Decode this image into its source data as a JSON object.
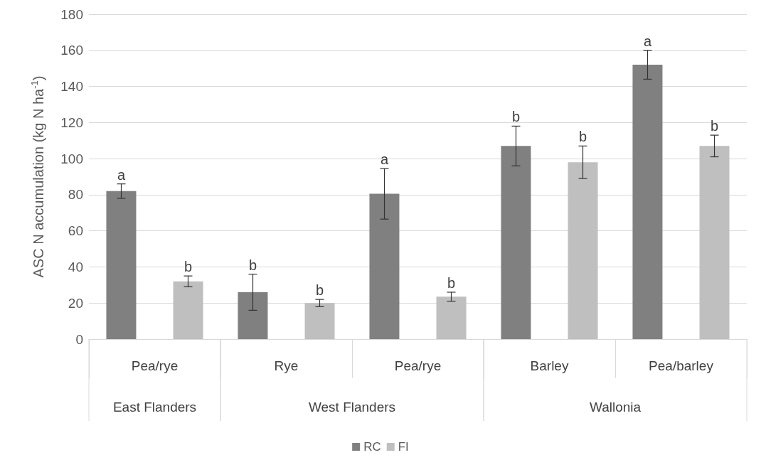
{
  "chart_data": {
    "type": "bar",
    "ylabel": "ASC N accumulation (kg N ha$^{-1}$)",
    "categories": [
      "Pea/rye",
      "Rye",
      "Pea/rye",
      "Barley",
      "Pea/barley"
    ],
    "series": [
      {
        "name": "RC",
        "color": "#808080",
        "values": [
          82,
          26,
          80.5,
          107,
          152
        ],
        "errors": [
          4,
          10,
          14,
          11,
          8
        ],
        "value_labels": [
          "a",
          "b",
          "a",
          "b",
          "a"
        ]
      },
      {
        "name": "FI",
        "color": "#bfbfbf",
        "values": [
          32,
          20,
          23.5,
          98,
          107
        ],
        "errors": [
          3,
          2,
          2.5,
          9,
          6
        ],
        "value_labels": [
          "b",
          "b",
          "b",
          "b",
          "b"
        ]
      }
    ],
    "annotations": [
      "East Flanders",
      "West Flanders",
      "Wallonia"
    ],
    "ylim": [
      0,
      180
    ],
    "yticks": [
      0,
      20,
      40,
      60,
      80,
      100,
      120,
      140,
      160,
      180
    ],
    "grid": "y",
    "legend": "bottom"
  }
}
